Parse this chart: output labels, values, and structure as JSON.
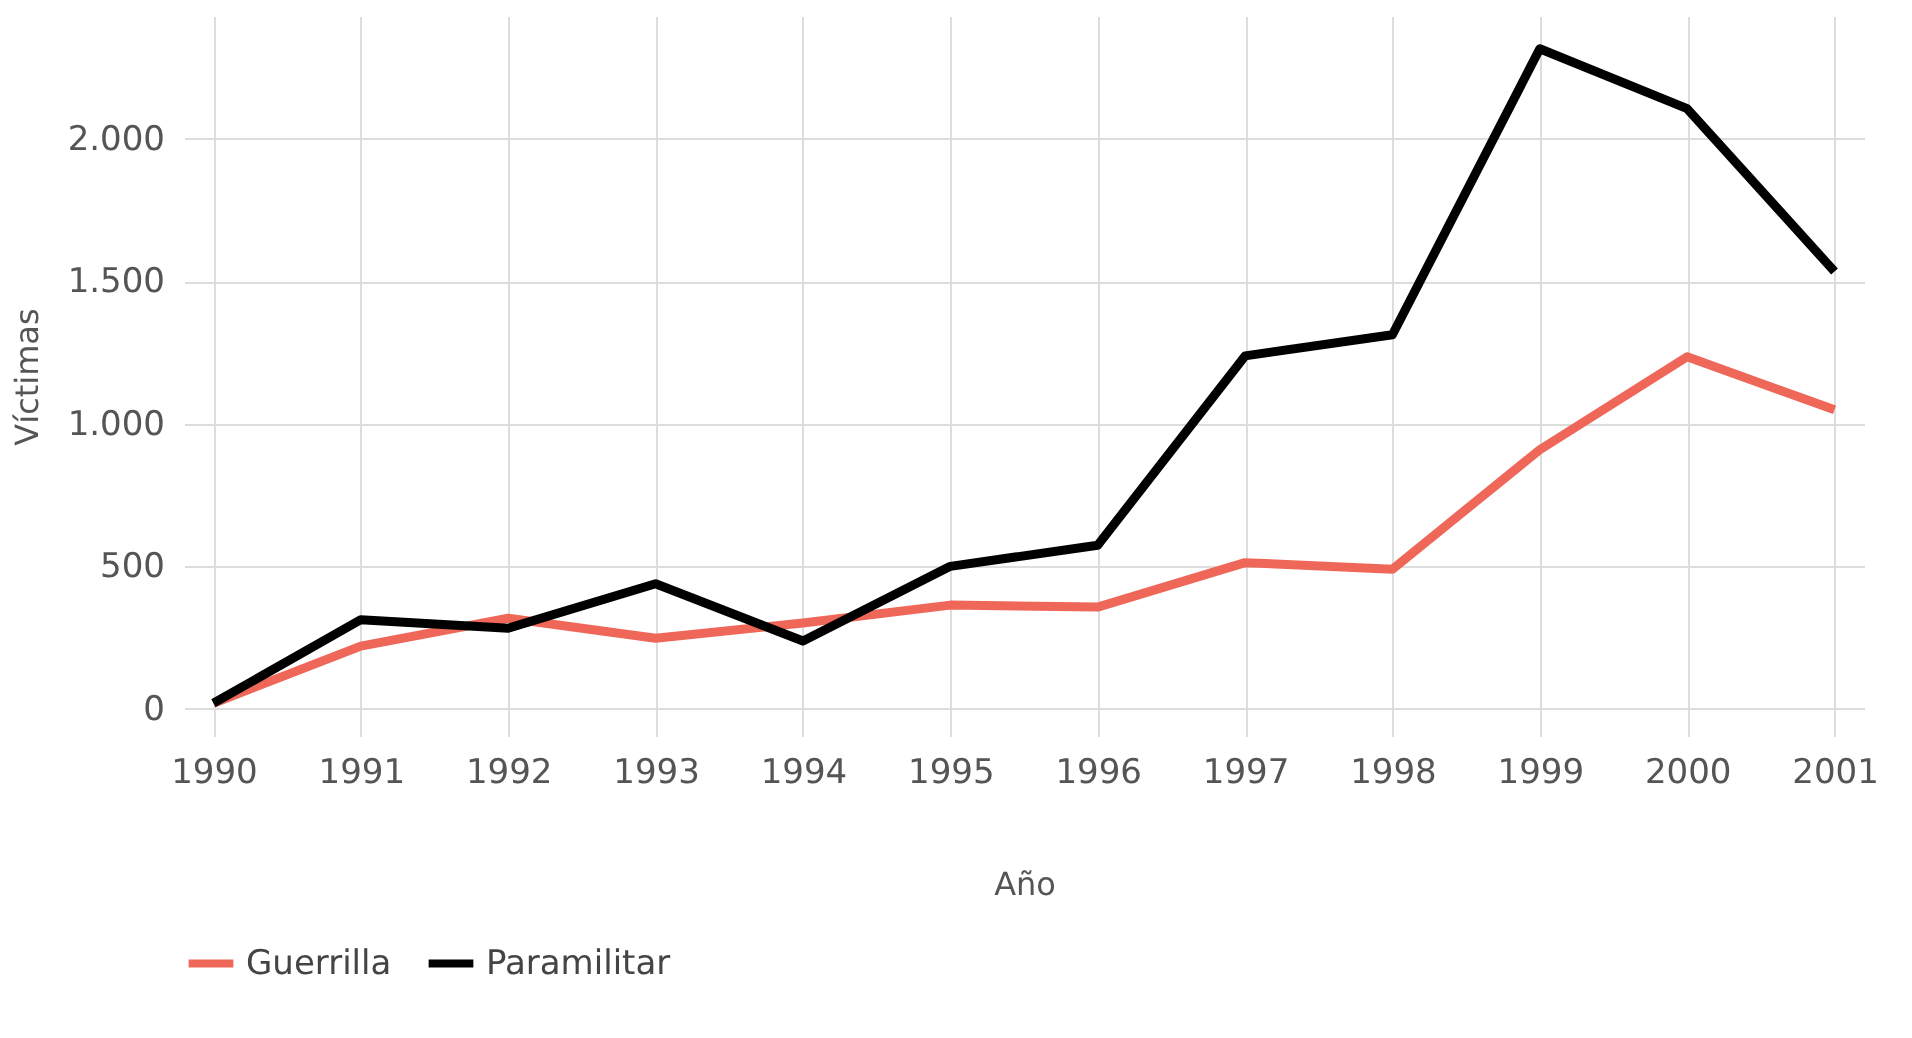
{
  "chart_data": {
    "type": "line",
    "xlabel": "Año",
    "ylabel": "Víctimas",
    "categories": [
      "1990",
      "1991",
      "1992",
      "1993",
      "1994",
      "1995",
      "1996",
      "1997",
      "1998",
      "1999",
      "2000",
      "2001"
    ],
    "series": [
      {
        "name": "Guerrilla",
        "color": "#ef6759",
        "values": [
          20,
          220,
          318,
          248,
          301,
          364,
          357,
          513,
          490,
          909,
          1235,
          1049
        ]
      },
      {
        "name": "Paramilitar",
        "color": "#000000",
        "values": [
          20,
          313,
          283,
          439,
          238,
          500,
          574,
          1238,
          1312,
          2315,
          2105,
          1534
        ]
      }
    ],
    "ylim": [
      -95,
      2430
    ],
    "yticks": [
      0,
      500,
      {
        "value": 1000,
        "label": "1.000"
      },
      {
        "value": 1500,
        "label": "1.500"
      },
      {
        "value": 2000,
        "label": "2.000"
      }
    ],
    "grid": true,
    "legend": "bottom",
    "marker": "none",
    "line_style": "solid"
  }
}
